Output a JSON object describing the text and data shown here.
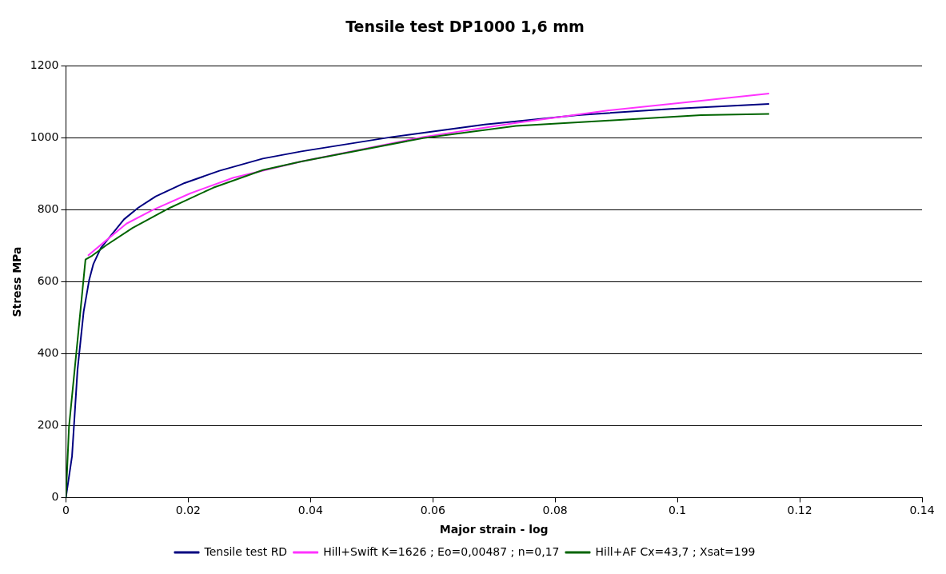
{
  "chart_data": {
    "type": "line",
    "title": "Tensile test DP1000 1,6 mm",
    "xlabel": "Major strain - log",
    "ylabel": "Stress MPa",
    "xlim": [
      0,
      0.14
    ],
    "xticks": [
      0,
      0.02,
      0.04,
      0.06,
      0.08,
      0.1,
      0.12,
      0.14
    ],
    "ylim": [
      0,
      1200
    ],
    "yticks": [
      0,
      200,
      400,
      600,
      800,
      1000,
      1200
    ],
    "grid": "y",
    "legend": "bottom",
    "marker": "none",
    "line_style": "solid",
    "series": [
      {
        "name": "Tensile test RD",
        "color": "#000080",
        "x": [
          0,
          0.001,
          0.0019,
          0.0029,
          0.0038,
          0.0045,
          0.0057,
          0.0076,
          0.0095,
          0.0118,
          0.0147,
          0.0194,
          0.0251,
          0.0322,
          0.0385,
          0.0533,
          0.0685,
          0.0837,
          0.0989,
          0.115
        ],
        "values": [
          0,
          115,
          356,
          517,
          605,
          650,
          694,
          734,
          774,
          806,
          838,
          875,
          909,
          943,
          963,
          1003,
          1038,
          1064,
          1081,
          1095
        ]
      },
      {
        "name": "Hill+Swift K=1626 ; Eo=0,00487 ; n=0,17",
        "color": "#ff33ff",
        "x": [
          0.0036,
          0.0062,
          0.0099,
          0.0142,
          0.0203,
          0.0274,
          0.0385,
          0.0584,
          0.0736,
          0.0888,
          0.1039,
          0.115
        ],
        "values": [
          673,
          710,
          762,
          800,
          846,
          890,
          935,
          1003,
          1042,
          1077,
          1104,
          1124
        ]
      },
      {
        "name": "Hill+AF Cx=43,7 ; Xsat=199",
        "color": "#006400",
        "x": [
          0,
          0.0005,
          0.0019,
          0.0032,
          0.0043,
          0.0066,
          0.0109,
          0.017,
          0.0241,
          0.0322,
          0.0385,
          0.0584,
          0.0736,
          0.0888,
          0.1039,
          0.115
        ],
        "values": [
          0,
          196,
          437,
          662,
          673,
          702,
          750,
          806,
          862,
          911,
          935,
          1000,
          1034,
          1049,
          1064,
          1067
        ]
      }
    ]
  }
}
